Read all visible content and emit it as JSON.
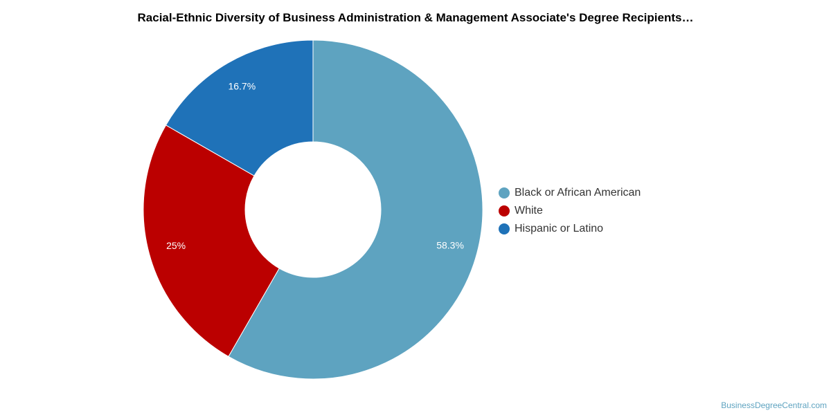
{
  "chart_data": {
    "type": "pie",
    "variant": "donut",
    "title": "Racial-Ethnic Diversity of Business Administration & Management Associate's Degree Recipients…",
    "categories": [
      "Black or African American",
      "White",
      "Hispanic or Latino"
    ],
    "values": [
      58.3,
      25,
      16.7
    ],
    "labels": [
      "58.3%",
      "25%",
      "16.7%"
    ],
    "colors": [
      "#5ea3c0",
      "#bb0000",
      "#1f72b8"
    ],
    "legend_position": "right",
    "start_angle": "top",
    "direction": "clockwise"
  },
  "legend": {
    "items": [
      {
        "label": "Black or African American",
        "color": "#5ea3c0"
      },
      {
        "label": "White",
        "color": "#bb0000"
      },
      {
        "label": "Hispanic or Latino",
        "color": "#1f72b8"
      }
    ]
  },
  "watermark": "BusinessDegreeCentral.com"
}
